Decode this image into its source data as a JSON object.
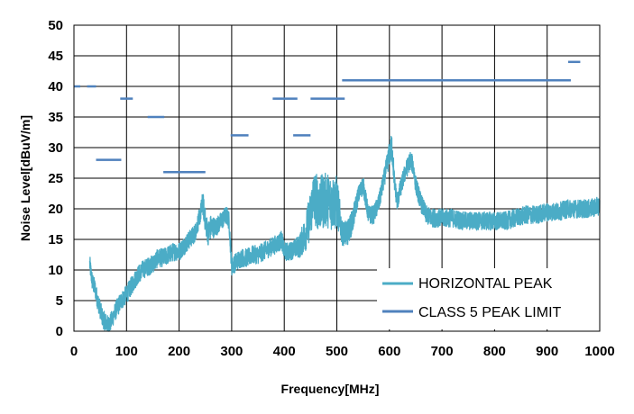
{
  "chart_data": {
    "type": "line",
    "title": "",
    "xlabel": "Frequency[MHz]",
    "ylabel": "Noise Level[dBuV/m]",
    "xlim": [
      0,
      1000
    ],
    "ylim": [
      0,
      50
    ],
    "xticks": [
      0,
      100,
      200,
      300,
      400,
      500,
      600,
      700,
      800,
      900,
      1000
    ],
    "yticks": [
      0,
      5,
      10,
      15,
      20,
      25,
      30,
      35,
      40,
      45,
      50
    ],
    "grid": true,
    "legend_position": "bottom-right",
    "colors": {
      "measurement": "#4bacc6",
      "limit": "#4f81bd",
      "grid": "#000000"
    },
    "series": [
      {
        "name": "HORIZONTAL PEAK",
        "style": "noisy-line",
        "x": [
          30,
          35,
          40,
          45,
          50,
          55,
          60,
          65,
          70,
          75,
          80,
          90,
          100,
          110,
          120,
          130,
          140,
          150,
          160,
          170,
          180,
          190,
          200,
          210,
          220,
          230,
          240,
          245,
          250,
          255,
          260,
          270,
          280,
          290,
          295,
          300,
          305,
          310,
          320,
          330,
          340,
          350,
          360,
          370,
          380,
          390,
          395,
          400,
          410,
          420,
          430,
          440,
          450,
          455,
          460,
          465,
          470,
          480,
          490,
          500,
          505,
          510,
          520,
          530,
          540,
          550,
          560,
          570,
          580,
          590,
          600,
          605,
          610,
          615,
          620,
          630,
          640,
          645,
          650,
          660,
          670,
          680,
          690,
          700,
          720,
          740,
          760,
          780,
          800,
          820,
          840,
          860,
          880,
          900,
          920,
          940,
          960,
          980,
          1000
        ],
        "values": [
          11,
          8,
          7,
          5,
          3.5,
          2,
          1.5,
          1,
          1.5,
          2.5,
          3.5,
          5,
          6,
          7.5,
          9,
          10,
          10.5,
          11,
          12,
          12,
          12.5,
          13,
          13,
          14,
          15,
          16,
          19,
          21,
          18,
          16,
          17,
          17,
          18,
          19,
          18,
          10.5,
          11,
          11.5,
          12,
          12,
          12.5,
          12.5,
          13,
          13.5,
          14,
          14.5,
          15,
          13,
          13,
          13.5,
          14,
          16,
          19,
          22,
          21.5,
          21,
          21,
          21.5,
          21,
          21,
          19,
          16,
          16,
          18,
          22,
          24,
          19,
          19,
          21,
          25,
          29,
          30,
          24,
          21,
          23,
          26,
          28,
          27,
          24,
          21,
          19,
          18.5,
          18.5,
          18.5,
          18.5,
          18,
          18,
          18,
          18,
          18,
          18.5,
          19,
          19,
          19.5,
          19.5,
          20,
          20,
          20,
          20.5
        ],
        "noise_amplitude": [
          1.5,
          1.5,
          1.5,
          1.5,
          1.5,
          1.5,
          1.5,
          1.5,
          1.5,
          1.5,
          1.5,
          1.5,
          1.5,
          1.5,
          1.5,
          1.5,
          1.5,
          1.5,
          1.5,
          1.5,
          1.5,
          1.5,
          1.5,
          1.5,
          1.5,
          1.5,
          1.5,
          2,
          2,
          2,
          2,
          1.5,
          1.5,
          1.5,
          1.5,
          1.5,
          1.5,
          1.5,
          1.5,
          1.5,
          1.5,
          1.5,
          1.5,
          1.5,
          1.5,
          1.5,
          1.5,
          1.5,
          1.5,
          1.5,
          2,
          3,
          4,
          4,
          4.5,
          4.5,
          4.5,
          4.5,
          4.5,
          4.5,
          3,
          2,
          2,
          2,
          1.5,
          1.5,
          1.5,
          1.5,
          1.5,
          1.5,
          2,
          2.5,
          1.5,
          1.5,
          1.5,
          1.5,
          1.5,
          1.5,
          1.5,
          1.5,
          1.5,
          1.5,
          1.5,
          1.5,
          1.5,
          1.5,
          1.5,
          1.5,
          1.5,
          1.5,
          1.5,
          1.5,
          1.5,
          1.5,
          1.5,
          1.5,
          1.5,
          1.5,
          1.5
        ]
      },
      {
        "name": "CLASS 5 PEAK LIMIT",
        "style": "segments",
        "segments": [
          {
            "x": [
              0,
              12
            ],
            "y": 40
          },
          {
            "x": [
              25,
              42
            ],
            "y": 40
          },
          {
            "x": [
              42,
              90
            ],
            "y": 28
          },
          {
            "x": [
              88,
              112
            ],
            "y": 38
          },
          {
            "x": [
              140,
              172
            ],
            "y": 35
          },
          {
            "x": [
              170,
              250
            ],
            "y": 26
          },
          {
            "x": [
              298,
              332
            ],
            "y": 32
          },
          {
            "x": [
              378,
              425
            ],
            "y": 38
          },
          {
            "x": [
              417,
              450
            ],
            "y": 32
          },
          {
            "x": [
              450,
              515
            ],
            "y": 38
          },
          {
            "x": [
              510,
              945
            ],
            "y": 41
          },
          {
            "x": [
              940,
              963
            ],
            "y": 44
          }
        ]
      }
    ]
  }
}
